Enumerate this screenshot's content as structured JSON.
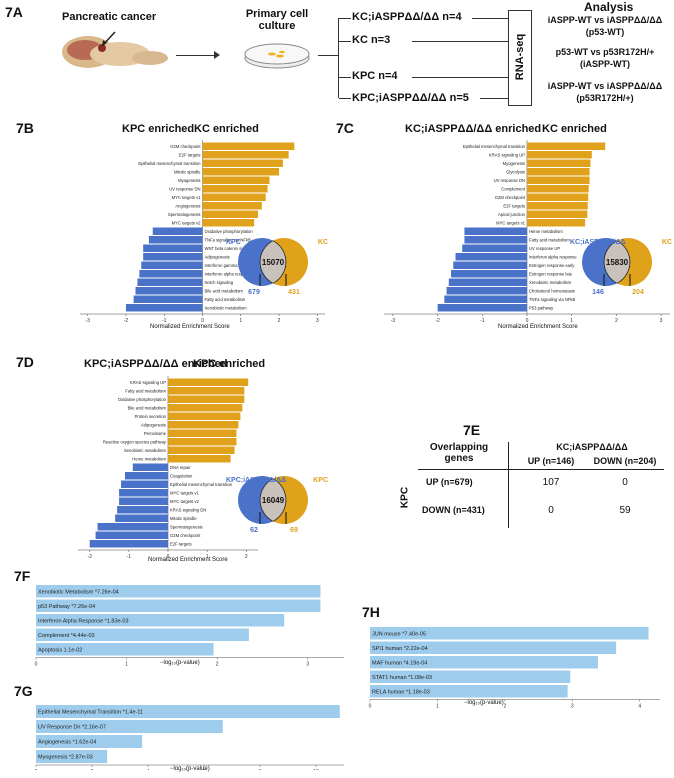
{
  "figure7A": {
    "label": "7A",
    "tissue_label": "Pancreatic cancer",
    "culture_label": "Primary cell\nculture",
    "groups": [
      "KC;iASPPΔΔ/ΔΔ n=4",
      "KC n=3",
      "KPC n=4",
      "KPC;iASPPΔΔ/ΔΔ n=5"
    ],
    "rnaseq_label": "RNA-seq",
    "analysis_title": "Analysis",
    "analyses": [
      "iASPP-WT vs iASPPΔΔ/ΔΔ\n(p53-WT)",
      "p53-WT vs p53R172H/+\n(iASPP-WT)",
      "iASPP-WT vs iASPPΔΔ/ΔΔ\n(p53R172H/+)"
    ]
  },
  "figure7B": {
    "label": "7B",
    "left_enriched": "KPC enriched",
    "right_enriched": "KC enriched",
    "xlabel": "Normalized Enrichment Score",
    "venn": {
      "left_name": "KPC",
      "right_name": "KC",
      "overlap": "15070",
      "left_only": "679",
      "right_only": "431"
    },
    "chart_data": {
      "type": "bar",
      "orientation": "horizontal",
      "categories": [
        "G2M checkpoint",
        "E2F targets",
        "Epithelial mesenchymal transition",
        "Mitotic spindle",
        "Myogenesis",
        "UV response DN",
        "MYC targets v1",
        "Angiogenesis",
        "Spermatogenesis",
        "MYC targets v2",
        "Oxidative phosphorylation",
        "TNFa signaling via NFkB",
        "WNT beta catenin signaling",
        "Adipogenesis",
        "Interferon gamma response",
        "Interferon alpha response",
        "Notch signaling",
        "Bile acid metabolism",
        "Fatty acid metabolism",
        "Xenobiotic metabolism"
      ],
      "values": [
        2.4,
        2.25,
        2.1,
        2.0,
        1.75,
        1.7,
        1.65,
        1.55,
        1.45,
        1.35,
        -1.3,
        -1.4,
        -1.55,
        -1.55,
        -1.6,
        -1.65,
        -1.7,
        -1.75,
        -1.8,
        -2.0
      ],
      "xticks": [
        -3,
        -2,
        -1,
        0,
        1,
        2,
        3
      ],
      "xlim": [
        -3.2,
        3.2
      ]
    }
  },
  "figure7C": {
    "label": "7C",
    "left_enriched": "KC;iASPPΔΔ/ΔΔ enriched",
    "right_enriched": "KC enriched",
    "xlabel": "Normalized Enrichment Score",
    "venn": {
      "left_name": "KC;iASPPΔΔ/ΔΔ",
      "right_name": "KC",
      "overlap": "15830",
      "left_only": "146",
      "right_only": "204"
    },
    "chart_data": {
      "type": "bar",
      "orientation": "horizontal",
      "categories": [
        "Epithelial mesenchymal transition",
        "KRAS signaling UP",
        "Myogenesis",
        "Glycolysis",
        "UV response DN",
        "Complement",
        "G2M checkpoint",
        "E2F targets",
        "Apical junction",
        "MYC targets v1",
        "Heme metabolism",
        "Fatty acid metabolism",
        "UV response UP",
        "Interferon alpha response",
        "Estrogen response early",
        "Estrogen response late",
        "Xenobiotic metabolism",
        "Cholesterol homeostasis",
        "TNFa signaling via NFkB",
        "P53 pathway"
      ],
      "values": [
        1.75,
        1.45,
        1.42,
        1.4,
        1.4,
        1.38,
        1.37,
        1.36,
        1.35,
        1.3,
        -1.4,
        -1.4,
        -1.45,
        -1.6,
        -1.65,
        -1.7,
        -1.75,
        -1.8,
        -1.85,
        -2.0
      ],
      "xticks": [
        -3,
        -2,
        -1,
        0,
        1,
        2,
        3
      ],
      "xlim": [
        -3.2,
        3.2
      ]
    }
  },
  "figure7D": {
    "label": "7D",
    "left_enriched": "KPC;iASPPΔΔ/ΔΔ enriched",
    "right_enriched": "KPC enriched",
    "xlabel": "Normalized Enrichment Score",
    "venn": {
      "left_name": "KPC;iASPPΔΔ/ΔΔ",
      "right_name": "KPC",
      "overlap": "16049",
      "left_only": "62",
      "right_only": "69"
    },
    "chart_data": {
      "type": "bar",
      "orientation": "horizontal",
      "categories": [
        "KRAS signaling UP",
        "Fatty acid metabolism",
        "Oxidative phosphorylation",
        "Bile acid metabolism",
        "Protein secretion",
        "Adipogenesis",
        "Peroxisome",
        "Reactive oxygen species pathway",
        "Xenobiotic metabolism",
        "Heme metabolism",
        "DNA repair",
        "Coagulation",
        "Epithelial mesenchymal transition",
        "MYC targets v1",
        "MYC targets v2",
        "KRAS signaling DN",
        "Mitotic spindle",
        "Spermatogenesis",
        "G2M checkpoint",
        "E2F targets"
      ],
      "values": [
        2.05,
        1.95,
        1.95,
        1.9,
        1.85,
        1.8,
        1.75,
        1.75,
        1.7,
        1.6,
        -0.9,
        -1.1,
        -1.2,
        -1.25,
        -1.25,
        -1.3,
        -1.35,
        -1.8,
        -1.85,
        -2.0
      ],
      "xticks": [
        -2,
        -1,
        0,
        1,
        2
      ],
      "xlim": [
        -2.3,
        2.3
      ]
    }
  },
  "figure7E": {
    "label": "7E",
    "overlapping_header": "Overlapping\ngenes",
    "col_group": "KC;iASPPΔΔ/ΔΔ",
    "row_group": "KPC",
    "col_headers": [
      "UP (n=146)",
      "DOWN (n=204)"
    ],
    "rows": [
      {
        "label": "UP (n=679)",
        "cells": [
          "107",
          "0"
        ]
      },
      {
        "label": "DOWN (n=431)",
        "cells": [
          "0",
          "59"
        ]
      }
    ]
  },
  "figure7F": {
    "label": "7F",
    "xlabel": "−log₁₀(p-value)",
    "chart_data": {
      "type": "bar",
      "orientation": "horizontal",
      "categories": [
        "Xenobiotic Metabolism *7.26e-04",
        "p53 Pathway *7.26e-04",
        "Interferon Alpha Response *1.83e-03",
        "Complement *4.44e-03",
        "Apoptosis 1.1e-02"
      ],
      "values": [
        3.14,
        3.14,
        2.74,
        2.35,
        1.96
      ],
      "xticks": [
        0,
        1,
        2,
        3
      ],
      "xlim": [
        0,
        3.4
      ]
    }
  },
  "figure7G": {
    "label": "7G",
    "xlabel": "−log₁₀(p-value)",
    "chart_data": {
      "type": "bar",
      "orientation": "horizontal",
      "categories": [
        "Epithelial Mesenchymal Transition *1.4e-11",
        "UV Response Dn *2.16e-07",
        "Angiogenesis *1.62e-04",
        "Myogenesis *2.87e-03"
      ],
      "values": [
        10.85,
        6.67,
        3.79,
        2.54
      ],
      "xticks": [
        0,
        2,
        4,
        6,
        8,
        10
      ],
      "xlim": [
        0,
        11
      ]
    }
  },
  "figure7H": {
    "label": "7H",
    "xlabel": "−log₁₀(p-value)",
    "chart_data": {
      "type": "bar",
      "orientation": "horizontal",
      "categories": [
        "JUN mouse *7.40e-05",
        "SPI1 human *2.22e-04",
        "MAF human *4.19e-04",
        "STAT1 human *1.08e-03",
        "RELA human *1.18e-03"
      ],
      "values": [
        4.13,
        3.65,
        3.38,
        2.97,
        2.93
      ],
      "xticks": [
        0,
        1,
        2,
        3,
        4
      ],
      "xlim": [
        0,
        4.3
      ]
    }
  },
  "colors": {
    "orange": "#E0A11B",
    "blue": "#4A72C9",
    "lightblue": "#9ECCEC",
    "venn_overlap": "#C9C1BB"
  }
}
